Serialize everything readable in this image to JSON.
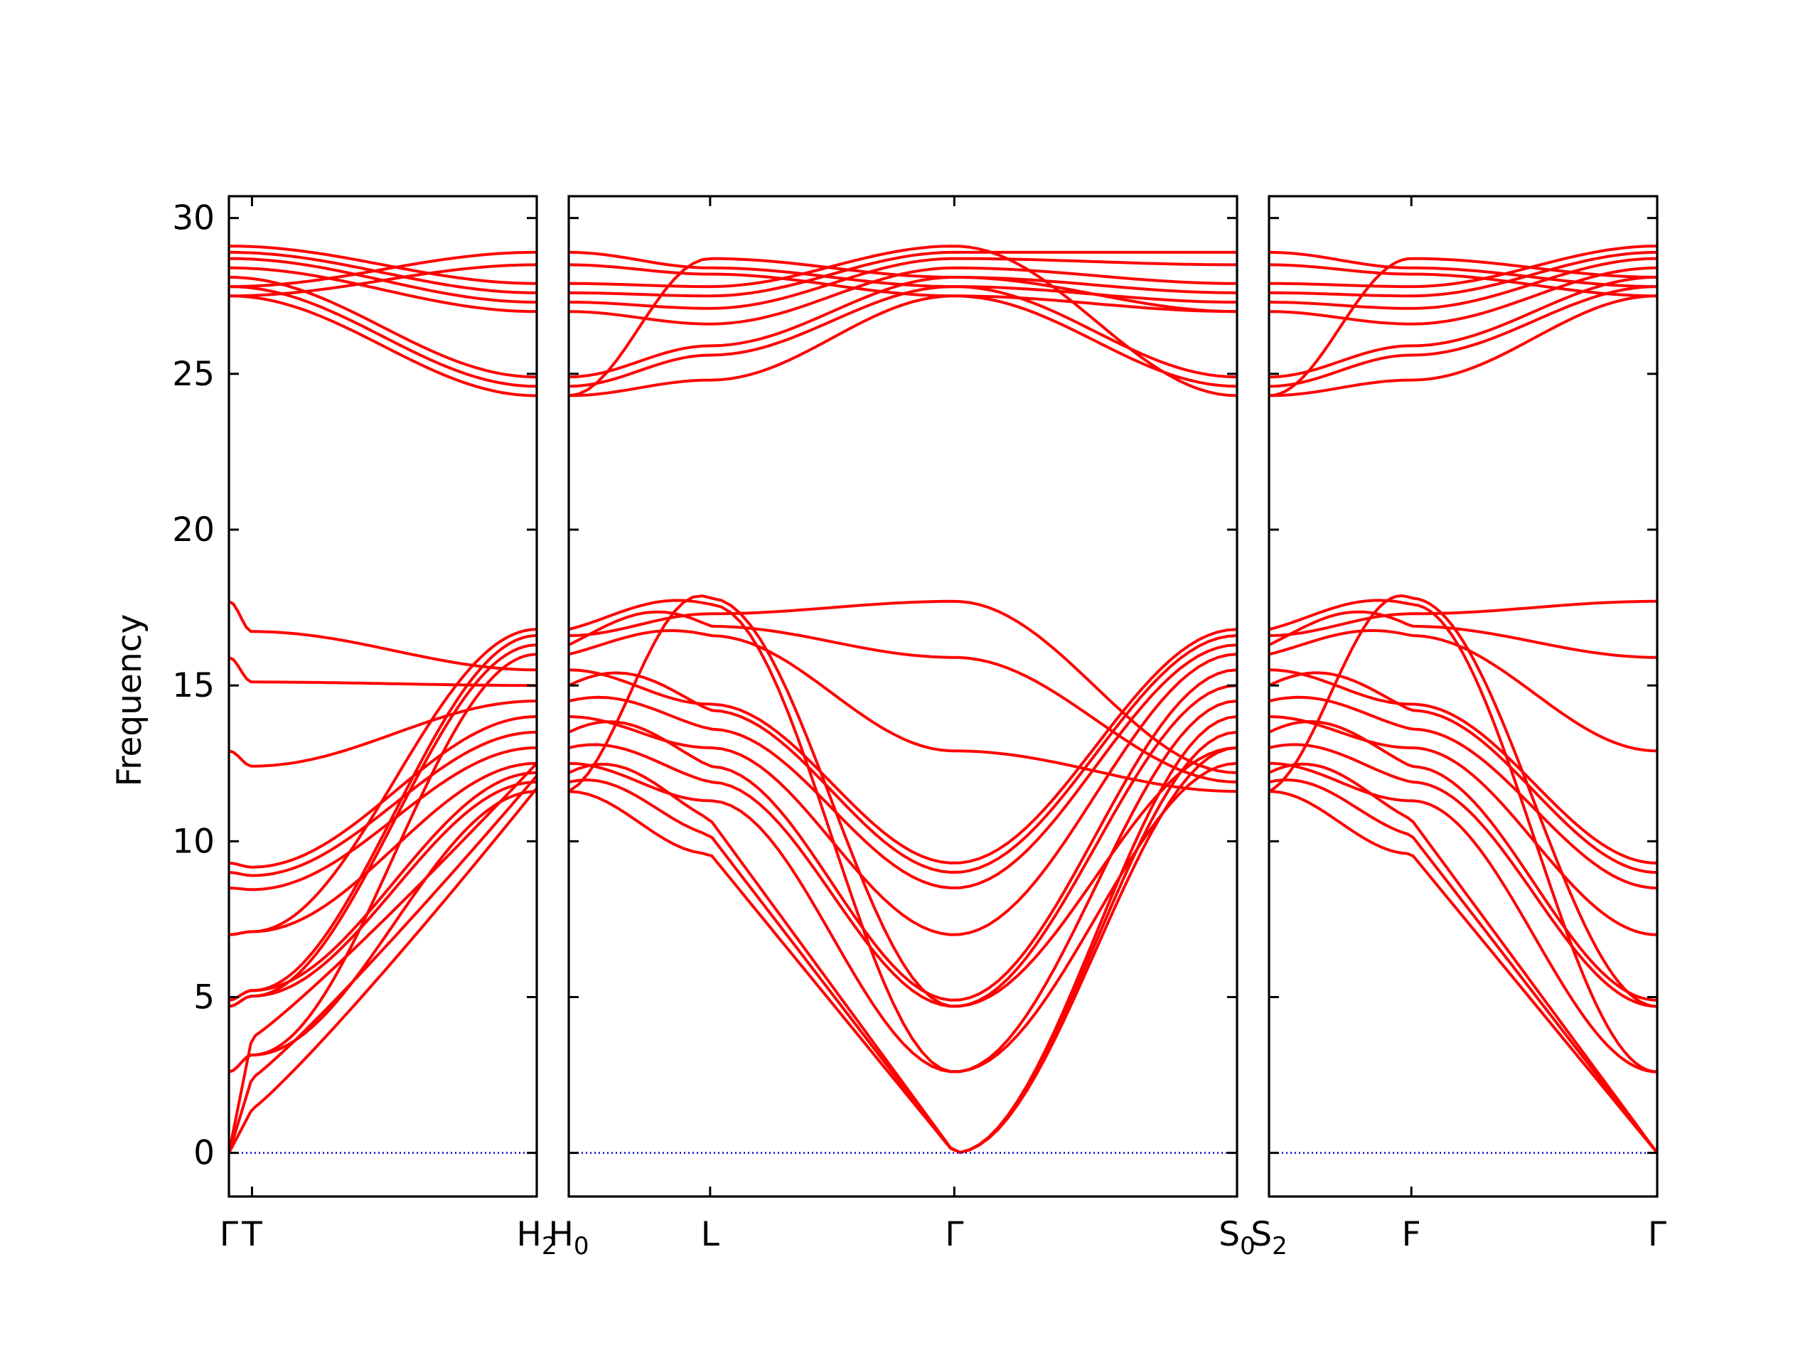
{
  "chart_data": {
    "type": "line",
    "ylabel": "Frequency",
    "ylim": [
      -1.4,
      30.7
    ],
    "yticks": [
      0,
      5,
      10,
      15,
      20,
      25,
      30
    ],
    "band_color": "#ff0000",
    "zero_line_color": "#0000cc",
    "grid": false,
    "panels": [
      {
        "x_range": [
          0,
          1.2
        ],
        "ticks": [
          {
            "x": 0.0,
            "label": "Γ"
          },
          {
            "x": 0.09,
            "label": "T"
          },
          {
            "x": 1.2,
            "label": "H",
            "sub": "2"
          }
        ],
        "acoustic_ends": [
          1.4,
          2.4,
          3.7
        ],
        "acoustic_targets": [
          11.7,
          12.1,
          12.5
        ]
      },
      {
        "x_range": [
          0,
          2.6
        ],
        "ticks": [
          {
            "x": 0.0,
            "label": "H",
            "sub": "0"
          },
          {
            "x": 0.55,
            "label": "L"
          },
          {
            "x": 1.5,
            "label": "Γ"
          },
          {
            "x": 2.6,
            "label": "S",
            "sub": "0"
          }
        ]
      },
      {
        "x_range": [
          0,
          1.5
        ],
        "ticks": [
          {
            "x": 0.0,
            "label": "S",
            "sub": "2"
          },
          {
            "x": 0.55,
            "label": "F"
          },
          {
            "x": 1.5,
            "label": "Γ"
          }
        ]
      }
    ],
    "gamma_optical_low": [
      2.6,
      4.7,
      4.9,
      7.0,
      8.5,
      9.0,
      9.3,
      12.9,
      15.9,
      17.7
    ],
    "gamma_optical_high": [
      27.5,
      27.8,
      28.1,
      28.4,
      28.7,
      28.9,
      29.1
    ],
    "zone_edge_low": [
      11.6,
      11.9,
      12.2,
      12.5,
      13.0,
      13.5,
      14.0,
      14.5,
      15.0,
      15.5,
      16.0,
      16.3,
      16.6,
      16.8
    ],
    "zone_edge_high": [
      24.3,
      24.6,
      24.9,
      27.0,
      27.3,
      27.6,
      27.9,
      28.5,
      28.9
    ],
    "L_low": [
      9.6,
      10.2,
      10.7,
      11.3,
      11.9,
      12.4,
      13.0,
      13.6,
      14.2,
      14.4,
      16.6,
      16.9,
      17.3,
      17.6,
      17.8
    ],
    "L_high": [
      24.8,
      25.6,
      25.9,
      26.6,
      27.1,
      27.5,
      27.8,
      28.2,
      28.4,
      28.7
    ]
  }
}
